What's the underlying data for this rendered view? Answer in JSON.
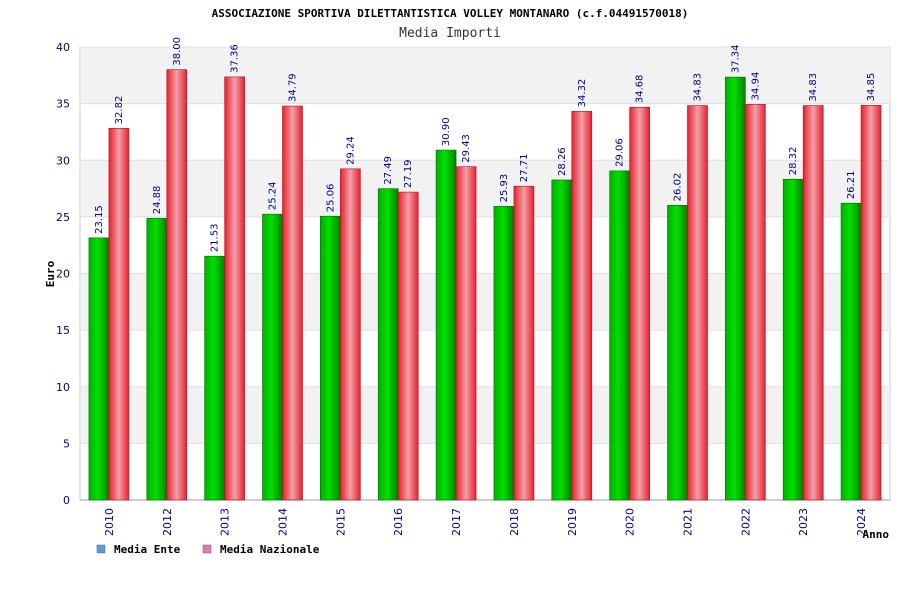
{
  "chart_data": {
    "type": "bar",
    "title": "ASSOCIAZIONE SPORTIVA DILETTANTISTICA VOLLEY MONTANARO (c.f.04491570018)",
    "subtitle": "Media Importi",
    "xlabel": "Anno",
    "ylabel": "Euro",
    "ylim": [
      0,
      40
    ],
    "yticks": [
      0,
      5,
      10,
      15,
      20,
      25,
      30,
      35,
      40
    ],
    "grid": true,
    "legend_position": "bottom-left",
    "categories": [
      "2010",
      "2012",
      "2013",
      "2014",
      "2015",
      "2016",
      "2017",
      "2018",
      "2019",
      "2020",
      "2021",
      "2022",
      "2023",
      "2024"
    ],
    "series": [
      {
        "name": "Media Ente",
        "legend_color": "#5b9bd5",
        "bar_color": "#00a000",
        "values": [
          23.15,
          24.88,
          21.53,
          25.24,
          25.06,
          27.49,
          30.9,
          25.93,
          28.26,
          29.06,
          26.02,
          37.34,
          28.32,
          26.21
        ],
        "labels": [
          "23.15",
          "24.88",
          "21.53",
          "25.24",
          "25.06",
          "27.49",
          "30.90",
          "25.93",
          "28.26",
          "29.06",
          "26.02",
          "37.34",
          "28.32",
          "26.21"
        ]
      },
      {
        "name": "Media Nazionale",
        "legend_color": "#e07bb0",
        "bar_color": "#e8202e",
        "values": [
          32.82,
          38.0,
          37.36,
          34.79,
          29.24,
          27.19,
          29.43,
          27.71,
          34.32,
          34.68,
          34.83,
          34.94,
          34.83,
          34.85
        ],
        "labels": [
          "32.82",
          "38.00",
          "37.36",
          "34.79",
          "29.24",
          "27.19",
          "29.43",
          "27.71",
          "34.32",
          "34.68",
          "34.83",
          "34.94",
          "34.83",
          "34.85"
        ]
      }
    ]
  }
}
